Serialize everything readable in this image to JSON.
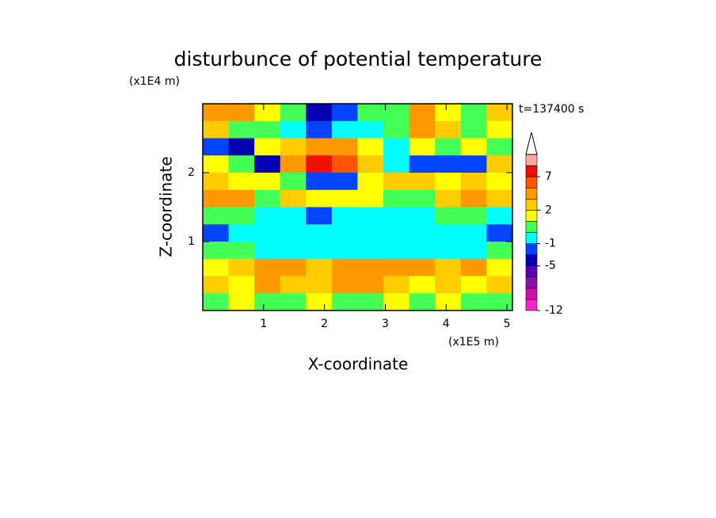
{
  "chart_data": {
    "type": "contour",
    "title": "disturbunce of potential temperature",
    "x_label": "X-coordinate",
    "y_label": "Z-coordinate",
    "x_unit": "(x1E5 m)",
    "y_unit": "(x1E4 m)",
    "annotation": "t=137400 s",
    "xlim": [
      0,
      5.09
    ],
    "ylim": [
      0,
      3
    ],
    "xticks": [
      1,
      2,
      3,
      4,
      5
    ],
    "yticks": [
      1,
      2
    ],
    "z": [
      [
        3,
        4,
        1,
        0,
        -4,
        -3,
        0,
        0,
        3,
        1,
        0,
        2
      ],
      [
        2,
        0,
        0,
        -1,
        -2,
        -1,
        -1,
        0,
        3,
        2,
        0,
        1
      ],
      [
        -3,
        -4,
        1,
        2,
        4,
        3,
        1,
        -1,
        1,
        0,
        1,
        0
      ],
      [
        1,
        0,
        -4,
        3,
        7,
        5,
        2,
        -1,
        -3,
        -2,
        -3,
        2
      ],
      [
        2,
        1,
        1,
        0,
        -3,
        -3,
        1,
        2,
        2,
        1,
        2,
        1
      ],
      [
        3,
        3,
        0,
        2,
        1,
        1,
        1,
        0,
        0,
        2,
        3,
        2
      ],
      [
        0,
        0,
        -1,
        -1,
        -3,
        -1,
        -1,
        -1,
        -1,
        0,
        0,
        -1
      ],
      [
        -3,
        -1,
        -1,
        -1,
        -1,
        -1,
        -1,
        -1,
        -1,
        -1,
        -1,
        -3
      ],
      [
        0,
        0,
        -1,
        -1,
        -1,
        -1,
        -1,
        -1,
        -1,
        -1,
        -1,
        0
      ],
      [
        1,
        2,
        3,
        3,
        2,
        3,
        3,
        3,
        3,
        2,
        3,
        1
      ],
      [
        2,
        1,
        3,
        2,
        2,
        3,
        3,
        2,
        1,
        2,
        1,
        2
      ],
      [
        0,
        1,
        0,
        0,
        1,
        0,
        0,
        1,
        0,
        1,
        0,
        0
      ]
    ],
    "colorbar": {
      "levels": [
        -12,
        -10,
        -8,
        -6,
        -5,
        -3,
        -1,
        0,
        1,
        2,
        3,
        5,
        7,
        9,
        11
      ],
      "colors": [
        "#ff22cc",
        "#cc11aa",
        "#8a11a8",
        "#5a00aa",
        "#0000b0",
        "#0044ff",
        "#00ffff",
        "#44ff55",
        "#ffff00",
        "#ffcc00",
        "#ff9900",
        "#ff5500",
        "#ee1100",
        "#ffaaaa"
      ],
      "extend_color": "#ffffff",
      "ticks": [
        -12,
        -5,
        -1,
        2,
        7
      ]
    }
  }
}
